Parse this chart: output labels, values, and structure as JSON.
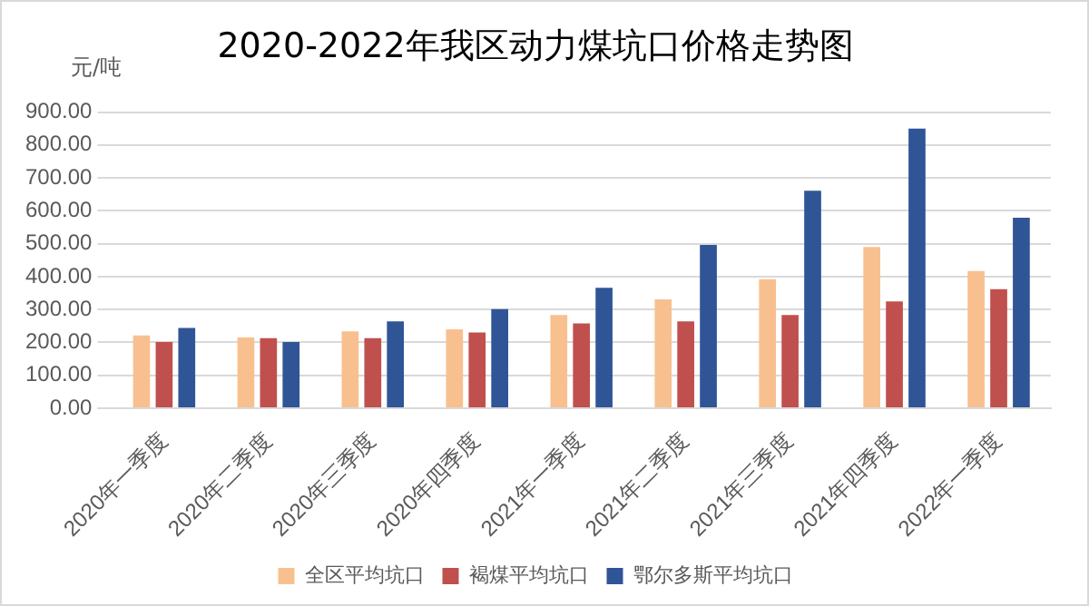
{
  "chart_data": {
    "type": "bar",
    "title": "2020-2022年我区动力煤坑口价格走势图",
    "ylabel": "元/吨",
    "categories": [
      "2020年一季度",
      "2020年二季度",
      "2020年三季度",
      "2020年四季度",
      "2021年一季度",
      "2021年二季度",
      "2021年三季度",
      "2021年四季度",
      "2022年一季度"
    ],
    "series": [
      {
        "name": "全区平均坑口",
        "color": "#f8c08f",
        "values": [
          221,
          215,
          234,
          240,
          283,
          331,
          392,
          490,
          417
        ]
      },
      {
        "name": "褐煤平均坑口",
        "color": "#c0504d",
        "values": [
          201,
          213,
          213,
          230,
          258,
          264,
          283,
          325,
          362
        ]
      },
      {
        "name": "鄂尔多斯平均坑口",
        "color": "#2f5597",
        "values": [
          244,
          201,
          264,
          301,
          366,
          496,
          661,
          850,
          579
        ]
      }
    ],
    "ylim": [
      0,
      900
    ],
    "yticks": [
      {
        "value": 0,
        "label": "0.00"
      },
      {
        "value": 100,
        "label": "100.00"
      },
      {
        "value": 200,
        "label": "200.00"
      },
      {
        "value": 300,
        "label": "300.00"
      },
      {
        "value": 400,
        "label": "400.00"
      },
      {
        "value": 500,
        "label": "500.00"
      },
      {
        "value": 600,
        "label": "600.00"
      },
      {
        "value": 700,
        "label": "700.00"
      },
      {
        "value": 800,
        "label": "800.00"
      },
      {
        "value": 900,
        "label": "900.00"
      }
    ],
    "grid": "y",
    "legend": "bottom"
  }
}
